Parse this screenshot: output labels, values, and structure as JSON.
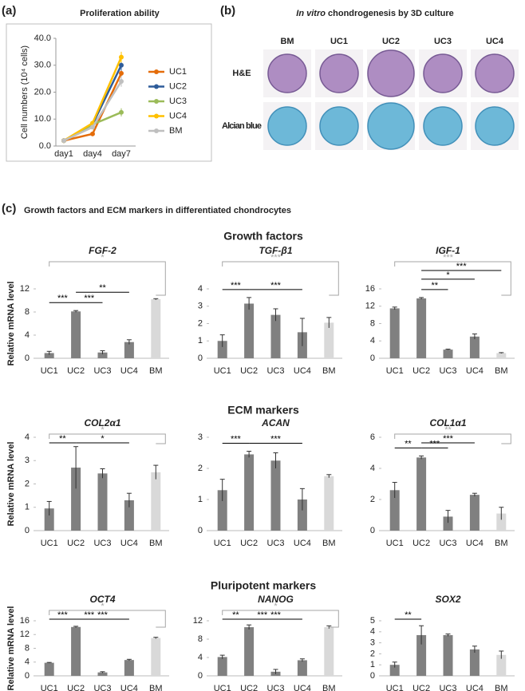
{
  "panel_labels": [
    "(a)",
    "(b)",
    "(c)"
  ],
  "chondrogenesis": {
    "title_italic": "In vitro",
    "title": "chondrogenesis by 3D culture",
    "columns": [
      "BM",
      "UC1",
      "UC2",
      "UC3",
      "UC4"
    ],
    "rows": [
      "H&E",
      "Alcian blue"
    ]
  },
  "expression_title": "Growth factors and ECM markers in differentiated chondrocytes",
  "groups": [
    "Growth factors",
    "ECM markers",
    "Pluripotent markers"
  ],
  "chart_data": [
    {
      "type": "line",
      "title": "Proliferation ability",
      "ylabel": "Cell numbers (10⁴ cells)",
      "categories": [
        "day1",
        "day4",
        "day7"
      ],
      "ylim": [
        0,
        40
      ],
      "yticks": [
        {
          "value": 0,
          "label": "0.0"
        },
        {
          "value": 10,
          "label": "10.0"
        },
        {
          "value": 20,
          "label": "20.0"
        },
        {
          "value": 30,
          "label": "30.0"
        },
        {
          "value": 40,
          "label": "40.0"
        }
      ],
      "series": [
        {
          "name": "UC1",
          "color": "#e46c0a",
          "values": [
            2,
            4.5,
            27
          ],
          "errors": [
            0.2,
            0.5,
            3
          ]
        },
        {
          "name": "UC2",
          "color": "#2e5c9a",
          "values": [
            2,
            8,
            30
          ],
          "errors": [
            0.2,
            0.5,
            2
          ]
        },
        {
          "name": "UC3",
          "color": "#9bbb59",
          "values": [
            2,
            8,
            12.5
          ],
          "errors": [
            0.2,
            0.5,
            1.5
          ]
        },
        {
          "name": "UC4",
          "color": "#ffc000",
          "values": [
            2,
            8.5,
            33
          ],
          "errors": [
            0.2,
            0.5,
            2
          ]
        },
        {
          "name": "BM",
          "color": "#bfbfbf",
          "values": [
            2,
            7,
            24
          ],
          "errors": [
            0.2,
            0.5,
            2
          ]
        }
      ]
    },
    {
      "type": "bar",
      "title": "FGF-2",
      "ylabel": "Relative mRNA level",
      "categories": [
        "UC1",
        "UC2",
        "UC3",
        "UC4",
        "BM"
      ],
      "colors": [
        "#808080",
        "#808080",
        "#808080",
        "#808080",
        "#d9d9d9"
      ],
      "ylim": [
        0,
        12
      ],
      "yticks": [
        0,
        4,
        8,
        12
      ],
      "values": [
        0.9,
        8.1,
        1.0,
        2.8,
        10.2
      ],
      "errors": [
        0.3,
        0.15,
        0.3,
        0.4,
        0.1
      ],
      "significance": [
        {
          "pair": [
            0,
            4
          ],
          "label": "*",
          "color": "#a6a6a6"
        },
        {
          "pair": [
            0,
            1
          ],
          "label": "***",
          "color": "#000000"
        },
        {
          "pair": [
            1,
            2
          ],
          "label": "***",
          "color": "#000000"
        },
        {
          "pair": [
            1,
            3
          ],
          "label": "**",
          "color": "#000000"
        }
      ]
    },
    {
      "type": "bar",
      "title": "TGF-β1",
      "categories": [
        "UC1",
        "UC2",
        "UC3",
        "UC4",
        "BM"
      ],
      "colors": [
        "#808080",
        "#808080",
        "#808080",
        "#808080",
        "#d9d9d9"
      ],
      "ylim": [
        0,
        4
      ],
      "yticks": [
        0,
        1,
        2,
        3,
        4
      ],
      "values": [
        1.0,
        3.15,
        2.5,
        1.5,
        2.05
      ],
      "errors": [
        0.35,
        0.35,
        0.35,
        0.8,
        0.3
      ],
      "significance": [
        {
          "pair": [
            0,
            4
          ],
          "label": "***",
          "color": "#a6a6a6"
        },
        {
          "pair": [
            0,
            1
          ],
          "label": "***",
          "color": "#000000"
        },
        {
          "pair": [
            1,
            3
          ],
          "label": "***",
          "color": "#000000"
        }
      ]
    },
    {
      "type": "bar",
      "title": "IGF-1",
      "categories": [
        "UC1",
        "UC2",
        "UC3",
        "UC4",
        "BM"
      ],
      "colors": [
        "#808080",
        "#808080",
        "#808080",
        "#808080",
        "#d9d9d9"
      ],
      "ylim": [
        0,
        16
      ],
      "yticks": [
        0,
        4,
        8,
        12,
        16
      ],
      "values": [
        11.5,
        13.8,
        2.0,
        5.0,
        1.2
      ],
      "errors": [
        0.3,
        0.2,
        0.1,
        0.6,
        0.1
      ],
      "significance": [
        {
          "pair": [
            0,
            4
          ],
          "label": "***",
          "color": "#a6a6a6"
        },
        {
          "pair": [
            1,
            2
          ],
          "label": "**",
          "color": "#000000"
        },
        {
          "pair": [
            1,
            3
          ],
          "label": "*",
          "color": "#000000"
        },
        {
          "pair": [
            1,
            4
          ],
          "label": "***",
          "color": "#000000"
        }
      ]
    },
    {
      "type": "bar",
      "title": "COL2α1",
      "ylabel": "Relative mRNA level",
      "categories": [
        "UC1",
        "UC2",
        "UC3",
        "UC4",
        "BM"
      ],
      "colors": [
        "#808080",
        "#808080",
        "#808080",
        "#808080",
        "#d9d9d9"
      ],
      "ylim": [
        0,
        4
      ],
      "yticks": [
        0,
        1,
        2,
        3,
        4
      ],
      "values": [
        0.95,
        2.7,
        2.45,
        1.3,
        2.5
      ],
      "errors": [
        0.3,
        0.9,
        0.2,
        0.3,
        0.3
      ],
      "significance": [
        {
          "pair": [
            0,
            4
          ],
          "label": "*",
          "color": "#a6a6a6"
        },
        {
          "pair": [
            0,
            1
          ],
          "label": "**",
          "color": "#000000"
        },
        {
          "pair": [
            1,
            3
          ],
          "label": "*",
          "color": "#000000"
        }
      ]
    },
    {
      "type": "bar",
      "title": "ACAN",
      "categories": [
        "UC1",
        "UC2",
        "UC3",
        "UC4",
        "BM"
      ],
      "colors": [
        "#808080",
        "#808080",
        "#808080",
        "#808080",
        "#d9d9d9"
      ],
      "ylim": [
        0,
        3
      ],
      "yticks": [
        0,
        1,
        2,
        3
      ],
      "values": [
        1.3,
        2.45,
        2.25,
        1.0,
        1.75
      ],
      "errors": [
        0.35,
        0.1,
        0.25,
        0.35,
        0.05
      ],
      "significance": [
        {
          "pair": [
            0,
            1
          ],
          "label": "***",
          "color": "#000000"
        },
        {
          "pair": [
            1,
            3
          ],
          "label": "***",
          "color": "#000000"
        }
      ]
    },
    {
      "type": "bar",
      "title": "COL1α1",
      "categories": [
        "UC1",
        "UC2",
        "UC3",
        "UC4",
        "BM"
      ],
      "colors": [
        "#808080",
        "#808080",
        "#808080",
        "#808080",
        "#d9d9d9"
      ],
      "ylim": [
        0,
        6
      ],
      "yticks": [
        0,
        2,
        4,
        6
      ],
      "values": [
        2.6,
        4.7,
        0.9,
        2.3,
        1.1
      ],
      "errors": [
        0.5,
        0.1,
        0.4,
        0.1,
        0.4
      ],
      "significance": [
        {
          "pair": [
            0,
            4
          ],
          "label": "**",
          "color": "#a6a6a6"
        },
        {
          "pair": [
            0,
            1
          ],
          "label": "**",
          "color": "#000000"
        },
        {
          "pair": [
            1,
            2
          ],
          "label": "***",
          "color": "#000000"
        },
        {
          "pair": [
            1,
            3
          ],
          "label": "***",
          "color": "#000000"
        }
      ]
    },
    {
      "type": "bar",
      "title": "OCT4",
      "ylabel": "Relative mRNA level",
      "categories": [
        "UC1",
        "UC2",
        "UC3",
        "UC4",
        "BM"
      ],
      "colors": [
        "#808080",
        "#808080",
        "#808080",
        "#808080",
        "#d9d9d9"
      ],
      "ylim": [
        0,
        16
      ],
      "yticks": [
        0,
        4,
        8,
        12,
        16
      ],
      "values": [
        3.8,
        14.2,
        1.0,
        4.6,
        11.0
      ],
      "errors": [
        0.1,
        0.2,
        0.2,
        0.2,
        0.2
      ],
      "significance": [
        {
          "pair": [
            0,
            4
          ],
          "label": "*",
          "color": "#a6a6a6"
        },
        {
          "pair": [
            0,
            1
          ],
          "label": "***",
          "color": "#000000"
        },
        {
          "pair": [
            1,
            2
          ],
          "label": "***",
          "color": "#000000"
        },
        {
          "pair": [
            1,
            3
          ],
          "label": "***",
          "color": "#000000"
        }
      ]
    },
    {
      "type": "bar",
      "title": "NANOG",
      "categories": [
        "UC1",
        "UC2",
        "UC3",
        "UC4",
        "BM"
      ],
      "colors": [
        "#808080",
        "#808080",
        "#808080",
        "#808080",
        "#d9d9d9"
      ],
      "ylim": [
        0,
        12
      ],
      "yticks": [
        0,
        4,
        8,
        12
      ],
      "values": [
        4.1,
        10.6,
        0.9,
        3.4,
        10.6
      ],
      "errors": [
        0.4,
        0.5,
        0.5,
        0.3,
        0.3
      ],
      "significance": [
        {
          "pair": [
            0,
            4
          ],
          "label": "*",
          "color": "#a6a6a6"
        },
        {
          "pair": [
            0,
            1
          ],
          "label": "**",
          "color": "#000000"
        },
        {
          "pair": [
            1,
            2
          ],
          "label": "***",
          "color": "#000000"
        },
        {
          "pair": [
            1,
            3
          ],
          "label": "***",
          "color": "#000000"
        }
      ]
    },
    {
      "type": "bar",
      "title": "SOX2",
      "categories": [
        "UC1",
        "UC2",
        "UC3",
        "UC4",
        "BM"
      ],
      "colors": [
        "#808080",
        "#808080",
        "#808080",
        "#808080",
        "#d9d9d9"
      ],
      "ylim": [
        0,
        5
      ],
      "yticks": [
        0,
        1,
        2,
        3,
        4,
        5
      ],
      "values": [
        1.0,
        3.7,
        3.7,
        2.4,
        1.9
      ],
      "errors": [
        0.25,
        0.85,
        0.1,
        0.3,
        0.35
      ],
      "significance": [
        {
          "pair": [
            0,
            1
          ],
          "label": "**",
          "color": "#000000"
        }
      ]
    }
  ]
}
